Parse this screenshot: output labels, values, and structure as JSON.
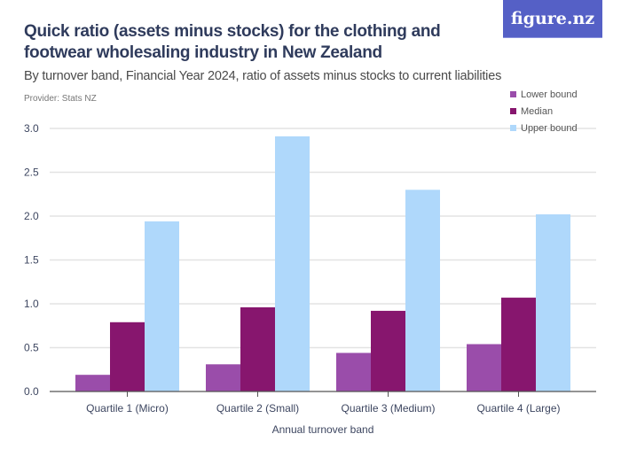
{
  "title": "Quick ratio (assets minus stocks) for the clothing and footwear wholesaling industry in New Zealand",
  "subtitle": "By turnover band, Financial Year 2024, ratio of assets minus stocks to current liabilities",
  "provider": "Provider: Stats NZ",
  "logo": "figure.nz",
  "chart_data": {
    "type": "bar",
    "categories": [
      "Quartile 1 (Micro)",
      "Quartile 2 (Small)",
      "Quartile 3 (Medium)",
      "Quartile 4 (Large)"
    ],
    "series": [
      {
        "name": "Lower bound",
        "color": "#9a4daa",
        "values": [
          0.19,
          0.31,
          0.44,
          0.54
        ]
      },
      {
        "name": "Median",
        "color": "#87166e",
        "values": [
          0.79,
          0.96,
          0.92,
          1.07
        ]
      },
      {
        "name": "Upper bound",
        "color": "#afd8fb",
        "values": [
          1.94,
          2.91,
          2.3,
          2.02
        ]
      }
    ],
    "xlabel": "Annual turnover band",
    "ylabel": "",
    "ylim": [
      0,
      3
    ],
    "yticks": [
      "0.0",
      "0.5",
      "1.0",
      "1.5",
      "2.0",
      "2.5",
      "3.0"
    ],
    "grid": true,
    "legend": "top-right"
  }
}
